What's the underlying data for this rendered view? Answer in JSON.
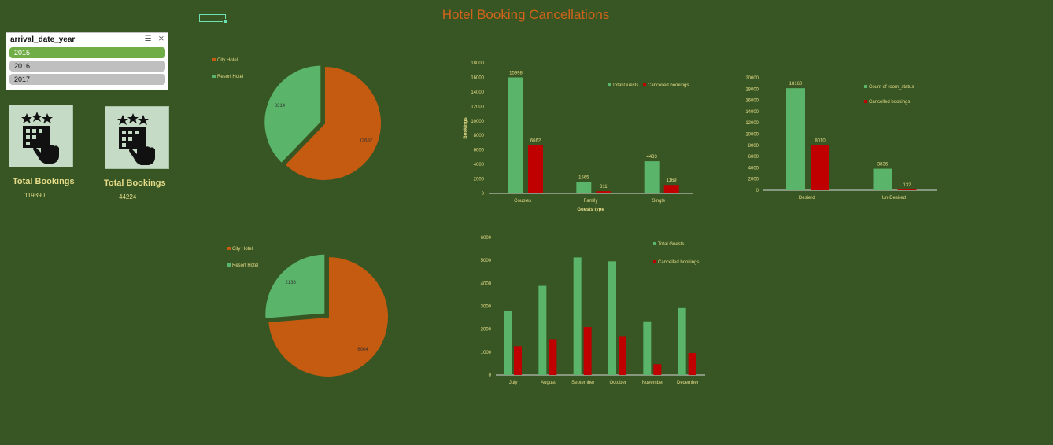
{
  "page": {
    "title": "Hotel Booking Cancellations"
  },
  "slicer": {
    "field": "arrival_date_year",
    "items": [
      "2015",
      "2016",
      "2017"
    ],
    "selected": "2015"
  },
  "kpis": [
    {
      "label": "Total Bookings",
      "value": "119390",
      "icon": "hotel-booking-icon"
    },
    {
      "label": "Total Bookings",
      "value": "44224",
      "icon": "hotel-booking-icon"
    }
  ],
  "colors": {
    "background": "#375623",
    "green": "#5ab46a",
    "red": "#c00000",
    "orange": "#c55a11",
    "text": "#e6dc8a",
    "title": "#d0631a"
  },
  "chart_data": [
    {
      "id": "pie-hotel-1",
      "type": "pie",
      "legend": [
        "City Hotel",
        "Resort Hotel"
      ],
      "values": [
        13682,
        8314
      ],
      "legend_position": "top-left"
    },
    {
      "id": "bar-guests-type",
      "type": "bar",
      "categories": [
        "Couples",
        "Family",
        "Single"
      ],
      "series": [
        {
          "name": "Total Guests",
          "values": [
            15998,
            1565,
            4433
          ]
        },
        {
          "name": "Cancelled bookings",
          "values": [
            6662,
            311,
            1169
          ]
        }
      ],
      "xlabel": "Guests type",
      "ylabel": "Bookings",
      "ylim": [
        0,
        18000
      ],
      "ticks": [
        0,
        2000,
        4000,
        6000,
        8000,
        10000,
        12000,
        14000,
        16000,
        18000
      ],
      "legend_position": "top-right"
    },
    {
      "id": "bar-room-status",
      "type": "bar",
      "categories": [
        "Desierd",
        "Un-Desired"
      ],
      "series": [
        {
          "name": "Count of room_status",
          "values": [
            18160,
            3836
          ]
        },
        {
          "name": "Cancelled bookings",
          "values": [
            8010,
            132
          ]
        }
      ],
      "xlabel": "",
      "ylabel": "",
      "ylim": [
        0,
        20000
      ],
      "ticks": [
        0,
        2000,
        4000,
        6000,
        8000,
        10000,
        12000,
        14000,
        16000,
        18000,
        20000
      ],
      "legend_position": "top-right"
    },
    {
      "id": "pie-hotel-2",
      "type": "pie",
      "legend": [
        "City Hotel",
        "Resort Hotel"
      ],
      "values": [
        6004,
        2138
      ],
      "legend_position": "top-left"
    },
    {
      "id": "bar-months",
      "type": "bar",
      "categories": [
        "July",
        "August",
        "September",
        "October",
        "November",
        "December"
      ],
      "series": [
        {
          "name": "Total Guests",
          "values": [
            2780,
            3890,
            5130,
            4960,
            2340,
            2920
          ]
        },
        {
          "name": "Cancelled bookings",
          "values": [
            1260,
            1560,
            2090,
            1700,
            470,
            960
          ]
        }
      ],
      "xlabel": "",
      "ylabel": "",
      "ylim": [
        0,
        6000
      ],
      "ticks": [
        0,
        1000,
        2000,
        3000,
        4000,
        5000,
        6000
      ],
      "legend_position": "top-right"
    }
  ]
}
